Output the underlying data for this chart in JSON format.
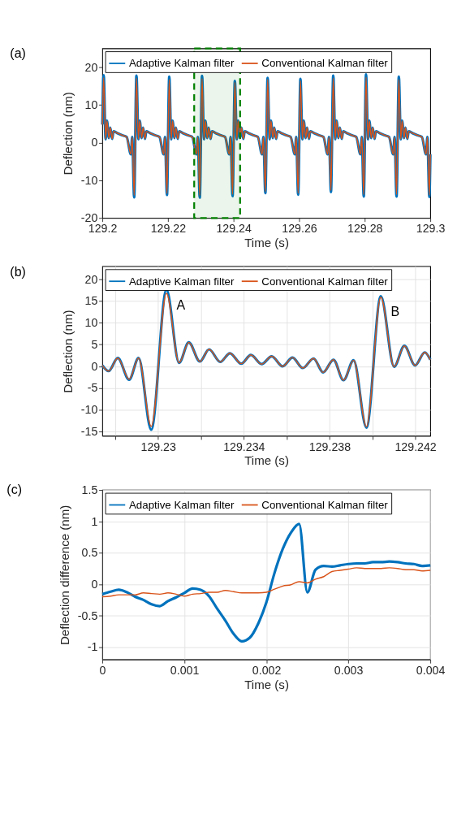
{
  "chart_data": [
    {
      "type": "line",
      "title": "(a)",
      "xlabel": "Time (s)",
      "ylabel": "Deflection (nm)",
      "xlim": [
        129.2,
        129.3
      ],
      "ylim": [
        -20,
        25
      ],
      "xticks": [
        129.2,
        129.22,
        129.24,
        129.26,
        129.28,
        129.3
      ],
      "yticks": [
        -20,
        -10,
        0,
        10,
        20
      ],
      "grid": false,
      "legend": "top",
      "x": [
        129.2,
        129.2004,
        129.201,
        129.2014,
        129.202,
        129.2024,
        129.203,
        129.2034,
        129.2044,
        129.2059,
        129.2074,
        129.2087,
        129.2091,
        129.2097,
        129.2104,
        129.211,
        129.2114,
        129.212,
        129.2124,
        129.213,
        129.2134,
        129.2144,
        129.2159,
        129.2174,
        129.2187,
        129.2191,
        129.2197,
        129.2204,
        129.221,
        129.2214,
        129.222,
        129.2224,
        129.223,
        129.2234,
        129.2244,
        129.2259,
        129.2274,
        129.2287,
        129.2291,
        129.2297,
        129.2304,
        129.231,
        129.2314,
        129.232,
        129.2324,
        129.233,
        129.2334,
        129.2344,
        129.2359,
        129.2374,
        129.2387,
        129.2391,
        129.2397,
        129.2404,
        129.241,
        129.2414,
        129.242,
        129.2424,
        129.243,
        129.2434,
        129.2444,
        129.2459,
        129.2474,
        129.2487,
        129.2491,
        129.2497,
        129.2504,
        129.251,
        129.2514,
        129.252,
        129.2524,
        129.253,
        129.2534,
        129.2544,
        129.2559,
        129.2574,
        129.2587,
        129.2591,
        129.2597,
        129.2604,
        129.261,
        129.2614,
        129.262,
        129.2624,
        129.263,
        129.2634,
        129.2644,
        129.2659,
        129.2674,
        129.2687,
        129.2691,
        129.2697,
        129.2704,
        129.271,
        129.2714,
        129.272,
        129.2724,
        129.273,
        129.2734,
        129.2744,
        129.2759,
        129.2774,
        129.2787,
        129.2791,
        129.2797,
        129.2804,
        129.281,
        129.2814,
        129.282,
        129.2824,
        129.283,
        129.2834,
        129.2844,
        129.2859,
        129.2874,
        129.2887,
        129.2891,
        129.2897,
        129.2904,
        129.291,
        129.2914,
        129.292,
        129.2924,
        129.293,
        129.2934,
        129.2944,
        129.2959,
        129.2974,
        129.2987,
        129.2991,
        129.2997,
        129.3
      ],
      "series": [
        {
          "name": "Adaptive Kalman filter",
          "color": "#0072bd",
          "values": [
            4.8,
            17.9,
            0.9,
            5.8,
            1.2,
            4.0,
            1.0,
            3.0,
            2.6,
            2.0,
            1.5,
            -3.1,
            1.5,
            -14.5,
            17.8,
            0.9,
            5.8,
            1.2,
            4.0,
            1.0,
            3.0,
            2.6,
            2.0,
            1.5,
            -3.1,
            1.5,
            -13.9,
            17.5,
            0.9,
            5.8,
            1.2,
            4.0,
            1.0,
            3.0,
            2.6,
            2.0,
            1.5,
            -3.1,
            1.5,
            -14.6,
            17.7,
            0.9,
            5.8,
            1.2,
            4.0,
            1.0,
            3.0,
            2.6,
            2.0,
            1.5,
            -3.1,
            1.5,
            -14.2,
            16.4,
            0.9,
            5.8,
            1.2,
            4.0,
            1.0,
            3.0,
            2.6,
            2.0,
            1.5,
            -3.1,
            1.5,
            -13.4,
            17.2,
            0.9,
            5.8,
            1.2,
            4.0,
            1.0,
            3.0,
            2.6,
            2.0,
            1.5,
            -3.1,
            1.5,
            -13.8,
            16.9,
            0.9,
            5.8,
            1.2,
            4.0,
            1.0,
            3.0,
            2.6,
            2.0,
            1.5,
            -3.1,
            1.5,
            -13.1,
            17.8,
            0.9,
            5.8,
            1.2,
            4.0,
            1.0,
            3.0,
            2.6,
            2.0,
            1.5,
            -3.1,
            1.5,
            -14.3,
            18.1,
            0.9,
            5.8,
            1.2,
            4.0,
            1.0,
            3.0,
            2.6,
            2.0,
            1.5,
            -3.1,
            1.5,
            -14.3,
            17.5,
            0.9,
            5.8,
            1.2,
            4.0,
            1.0,
            3.0,
            2.6,
            2.0,
            1.5,
            -3.1,
            1.5,
            -14.4,
            -3.1
          ]
        },
        {
          "name": "Conventional Kalman filter",
          "color": "#d95319",
          "values": [
            4.8,
            17.2,
            0.9,
            5.8,
            1.2,
            4.0,
            1.0,
            3.0,
            2.6,
            2.0,
            1.5,
            -3.1,
            1.5,
            -14.0,
            17.1,
            0.9,
            5.8,
            1.2,
            4.0,
            1.0,
            3.0,
            2.6,
            2.0,
            1.5,
            -3.1,
            1.5,
            -13.5,
            16.8,
            0.9,
            5.8,
            1.2,
            4.0,
            1.0,
            3.0,
            2.6,
            2.0,
            1.5,
            -3.1,
            1.5,
            -14.0,
            17.0,
            0.9,
            5.8,
            1.2,
            4.0,
            1.0,
            3.0,
            2.6,
            2.0,
            1.5,
            -3.1,
            1.5,
            -13.7,
            16.0,
            0.9,
            5.8,
            1.2,
            4.0,
            1.0,
            3.0,
            2.6,
            2.0,
            1.5,
            -3.1,
            1.5,
            -13.0,
            16.8,
            0.9,
            5.8,
            1.2,
            4.0,
            1.0,
            3.0,
            2.6,
            2.0,
            1.5,
            -3.1,
            1.5,
            -13.4,
            16.4,
            0.9,
            5.8,
            1.2,
            4.0,
            1.0,
            3.0,
            2.6,
            2.0,
            1.5,
            -3.1,
            1.5,
            -12.7,
            17.1,
            0.9,
            5.8,
            1.2,
            4.0,
            1.0,
            3.0,
            2.6,
            2.0,
            1.5,
            -3.1,
            1.5,
            -13.8,
            17.3,
            0.9,
            5.8,
            1.2,
            4.0,
            1.0,
            3.0,
            2.6,
            2.0,
            1.5,
            -3.1,
            1.5,
            -13.8,
            16.8,
            0.9,
            5.8,
            1.2,
            4.0,
            1.0,
            3.0,
            2.6,
            2.0,
            1.5,
            -3.1,
            1.5,
            -13.9,
            -3.1
          ]
        }
      ],
      "bands": [
        {
          "axis": "x",
          "from": 129.228,
          "to": 129.242,
          "color": "#008000"
        }
      ]
    },
    {
      "type": "line",
      "title": "(b)",
      "xlabel": "Time (s)",
      "ylabel": "Deflection (nm)",
      "xlim": [
        129.2274,
        129.2427
      ],
      "ylim": [
        -16,
        23
      ],
      "xticks": [
        {
          "value": 129.228,
          "label": null
        },
        129.23,
        {
          "value": 129.232,
          "label": null
        },
        129.234,
        {
          "value": 129.236,
          "label": null
        },
        129.238,
        {
          "value": 129.24,
          "label": null
        },
        129.242
      ],
      "yticks": [
        -15,
        -10,
        -5,
        0,
        5,
        10,
        15,
        20
      ],
      "grid": true,
      "legend": "top",
      "x": [
        129.2274,
        129.22769,
        129.22812,
        129.22865,
        129.22909,
        129.22968,
        129.23039,
        129.23098,
        129.23143,
        129.23195,
        129.23238,
        129.2329,
        129.23335,
        129.23388,
        129.23433,
        129.23483,
        129.2353,
        129.23581,
        129.23627,
        129.23675,
        129.23725,
        129.2377,
        129.23818,
        129.23865,
        129.23912,
        129.23972,
        129.24039,
        129.24101,
        129.24149,
        129.24199,
        129.24244,
        129.2427
      ],
      "series": [
        {
          "name": "Adaptive Kalman filter",
          "color": "#0072bd",
          "values": [
            0.2,
            -1.1,
            1.9,
            -3.1,
            1.9,
            -14.6,
            17.6,
            0.8,
            5.5,
            1.1,
            3.9,
            1.0,
            3.0,
            0.6,
            2.6,
            0.5,
            2.3,
            0.0,
            2.0,
            -0.4,
            1.8,
            -1.4,
            1.5,
            -3.2,
            1.4,
            -14.1,
            16.1,
            -0.1,
            4.7,
            0.2,
            3.2,
            1.5
          ]
        },
        {
          "name": "Conventional Kalman filter",
          "color": "#d95319",
          "values": [
            0.2,
            -1.1,
            1.9,
            -3.0,
            1.9,
            -13.8,
            16.8,
            0.8,
            5.5,
            1.1,
            3.9,
            1.0,
            3.0,
            0.6,
            2.6,
            0.5,
            2.3,
            0.0,
            2.0,
            -0.4,
            1.8,
            -1.4,
            1.5,
            -3.2,
            1.4,
            -13.9,
            15.9,
            -0.1,
            4.7,
            0.2,
            3.2,
            1.5
          ]
        }
      ],
      "annotations": [
        {
          "text": "A",
          "x": 129.23039,
          "y": 17.6
        },
        {
          "text": "B",
          "x": 129.24039,
          "y": 16.1
        }
      ]
    },
    {
      "type": "line",
      "title": "(c)",
      "xlabel": "Time (s)",
      "ylabel": "Deflection difference (nm)",
      "xlim": [
        0,
        0.004
      ],
      "ylim": [
        -1.2,
        1.5
      ],
      "xticks": [
        0,
        0.001,
        0.002,
        0.003,
        0.004
      ],
      "yticks": [
        -1,
        -0.5,
        0,
        0.5,
        1,
        1.5
      ],
      "grid": true,
      "legend": "top",
      "x": [
        0,
        0.0001,
        0.0002,
        0.0003,
        0.0004,
        0.0005,
        0.0006,
        0.0007,
        0.0008,
        0.0009,
        0.001,
        0.0011,
        0.0012,
        0.0013,
        0.0014,
        0.0015,
        0.0016,
        0.0017,
        0.0018,
        0.0019,
        0.002,
        0.0021,
        0.0022,
        0.0023,
        0.0024,
        0.0025,
        0.0026,
        0.0027,
        0.0028,
        0.0029,
        0.003,
        0.0031,
        0.0032,
        0.0033,
        0.0034,
        0.0035,
        0.0036,
        0.0037,
        0.0038,
        0.0039,
        0.004
      ],
      "series": [
        {
          "name": "Adaptive Kalman filter",
          "color": "#0072bd",
          "values": [
            -0.16,
            -0.12,
            -0.09,
            -0.13,
            -0.2,
            -0.25,
            -0.32,
            -0.35,
            -0.27,
            -0.21,
            -0.14,
            -0.07,
            -0.09,
            -0.19,
            -0.39,
            -0.58,
            -0.79,
            -0.91,
            -0.85,
            -0.63,
            -0.29,
            0.18,
            0.56,
            0.82,
            0.96,
            -0.13,
            0.23,
            0.29,
            0.28,
            0.3,
            0.32,
            0.33,
            0.33,
            0.35,
            0.35,
            0.36,
            0.35,
            0.33,
            0.32,
            0.29,
            0.3
          ]
        },
        {
          "name": "Conventional Kalman filter",
          "color": "#d95319",
          "values": [
            -0.2,
            -0.19,
            -0.17,
            -0.17,
            -0.17,
            -0.14,
            -0.15,
            -0.16,
            -0.14,
            -0.16,
            -0.19,
            -0.16,
            -0.15,
            -0.13,
            -0.13,
            -0.1,
            -0.12,
            -0.14,
            -0.14,
            -0.14,
            -0.13,
            -0.08,
            -0.03,
            -0.01,
            0.04,
            0.02,
            0.08,
            0.12,
            0.2,
            0.22,
            0.24,
            0.26,
            0.25,
            0.25,
            0.25,
            0.26,
            0.25,
            0.23,
            0.23,
            0.21,
            0.22
          ]
        }
      ]
    }
  ]
}
